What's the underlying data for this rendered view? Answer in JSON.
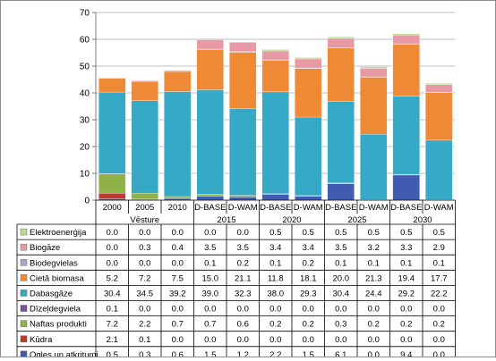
{
  "chart_data": {
    "type": "bar",
    "stacked": true,
    "ylim": [
      0,
      70
    ],
    "yticks": [
      0,
      10,
      20,
      30,
      40,
      50,
      60,
      70
    ],
    "grid": true,
    "legend_placement": "data-table-left",
    "categories": [
      "2000",
      "2005",
      "2010",
      "D-BASE",
      "D-WAM",
      "D-BASE",
      "D-WAM",
      "D-BASE",
      "D-WAM",
      "D-BASE",
      "D-WAM"
    ],
    "group_labels": [
      {
        "label": "Vēsture",
        "from": 0,
        "to": 2
      },
      {
        "label": "2015",
        "from": 3,
        "to": 4
      },
      {
        "label": "2020",
        "from": 5,
        "to": 6
      },
      {
        "label": "2025",
        "from": 7,
        "to": 8
      },
      {
        "label": "2030",
        "from": 9,
        "to": 10
      }
    ],
    "series": [
      {
        "name": "Elektroenerģija",
        "color": "#b7dd8e",
        "values": [
          0.0,
          0.0,
          0.0,
          0.0,
          0.0,
          0.5,
          0.5,
          0.5,
          0.5,
          0.5,
          0.5
        ],
        "labels": [
          "0.0",
          "0.0",
          "0.0",
          "0.0",
          "0.0",
          "0.5",
          "0.5",
          "0.5",
          "0.5",
          "0.5",
          "0.5"
        ]
      },
      {
        "name": "Biogāze",
        "color": "#e79aa6",
        "values": [
          0.0,
          0.3,
          0.4,
          3.5,
          3.5,
          3.4,
          3.4,
          3.5,
          3.2,
          3.3,
          2.9
        ],
        "labels": [
          "0.0",
          "0.3",
          "0.4",
          "3.5",
          "3.5",
          "3.4",
          "3.4",
          "3.5",
          "3.2",
          "3.3",
          "2.9"
        ]
      },
      {
        "name": "Biodegvielas",
        "color": "#a6a6c8",
        "values": [
          0.0,
          0.0,
          0.0,
          0.1,
          0.2,
          0.1,
          0.2,
          0.1,
          0.1,
          0.1,
          0.1
        ],
        "labels": [
          "0.0",
          "0.0",
          "0.0",
          "0.1",
          "0.2",
          "0.1",
          "0.2",
          "0.1",
          "0.1",
          "0.1",
          "0.1"
        ]
      },
      {
        "name": "Cietā biomasa",
        "color": "#ee8a35",
        "values": [
          5.2,
          7.2,
          7.5,
          15.0,
          21.1,
          11.8,
          18.1,
          20.0,
          21.3,
          19.4,
          17.7
        ],
        "labels": [
          "5.2",
          "7.2",
          "7.5",
          "15.0",
          "21.1",
          "11.8",
          "18.1",
          "20.0",
          "21.3",
          "19.4",
          "17.7"
        ]
      },
      {
        "name": "Dabasgāze",
        "color": "#36a9c6",
        "values": [
          30.4,
          34.5,
          39.2,
          39.0,
          32.3,
          38.0,
          29.3,
          30.4,
          24.4,
          29.2,
          22.2
        ],
        "labels": [
          "30.4",
          "34.5",
          "39.2",
          "39.0",
          "32.3",
          "38.0",
          "29.3",
          "30.4",
          "24.4",
          "29.2",
          "22.2"
        ]
      },
      {
        "name": "Dīzeļdegviela",
        "color": "#7b4fa0",
        "values": [
          0.1,
          0.0,
          0.0,
          0.0,
          0.0,
          0.0,
          0.0,
          0.0,
          0.0,
          0.0,
          0.0
        ],
        "labels": [
          "0.1",
          "0.0",
          "0.0",
          "0.0",
          "0.0",
          "0.0",
          "0.0",
          "0.0",
          "0.0",
          "0.0",
          "0.0"
        ]
      },
      {
        "name": "Naftas produkti",
        "color": "#8fb248",
        "values": [
          7.2,
          2.2,
          0.7,
          0.7,
          0.6,
          0.2,
          0.2,
          0.3,
          0.2,
          0.2,
          0.2
        ],
        "labels": [
          "7.2",
          "2.2",
          "0.7",
          "0.7",
          "0.6",
          "0.2",
          "0.2",
          "0.3",
          "0.2",
          "0.2",
          "0.2"
        ]
      },
      {
        "name": "Kūdra",
        "color": "#c0392b",
        "values": [
          2.1,
          0.1,
          0.0,
          0.0,
          0.0,
          0.0,
          0.0,
          0.0,
          0.0,
          0.0,
          0.0
        ],
        "labels": [
          "2.1",
          "0.1",
          "0.0",
          "0.0",
          "0.0",
          "0.0",
          "0.0",
          "0.0",
          "0.0",
          "0.0",
          "0.0"
        ]
      },
      {
        "name": "Ogles un atkritumi",
        "color": "#3f5cb0",
        "values": [
          0.5,
          0.3,
          0.6,
          1.5,
          1.2,
          2.2,
          1.5,
          6.1,
          0.0,
          9.4,
          0.0
        ],
        "labels": [
          "0.5",
          "0.3",
          "0.6",
          "1.5",
          "1.2",
          "2.2",
          "1.5",
          "6.1",
          "0.0",
          "9.4",
          "0.0"
        ]
      }
    ]
  }
}
